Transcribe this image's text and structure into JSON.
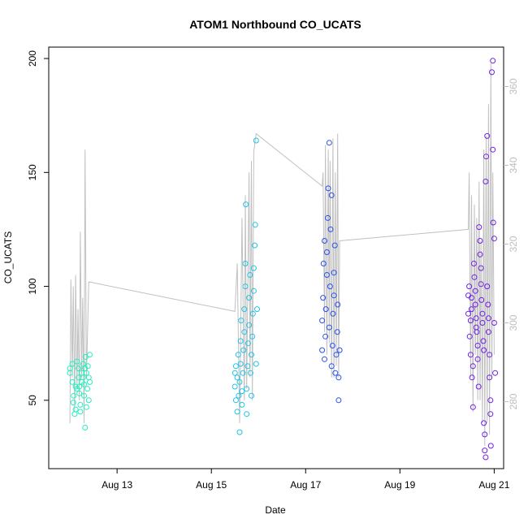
{
  "chart_data": {
    "type": "scatter",
    "title": "ATOM1 Northbound CO_UCATS",
    "xlabel": "Date",
    "ylabel": "CO_UCATS",
    "x_ticks": [
      "Aug 13",
      "Aug 15",
      "Aug 17",
      "Aug 19",
      "Aug 21"
    ],
    "x_tick_values": [
      13,
      15,
      17,
      19,
      21
    ],
    "xlim": [
      11.55,
      21.2
    ],
    "y_ticks": [
      50,
      100,
      150,
      200
    ],
    "ylim": [
      20,
      205
    ],
    "y2_ticks": [
      280,
      300,
      320,
      340,
      360
    ],
    "y2lim": [
      263,
      370
    ],
    "grid": false,
    "legend": "none",
    "line_color": "#c0c0c0",
    "series": [
      {
        "color": "#22f0c0",
        "points": [
          [
            12.0,
            64
          ],
          [
            12.0,
            62
          ],
          [
            12.05,
            66
          ],
          [
            12.05,
            58
          ],
          [
            12.07,
            49
          ],
          [
            12.08,
            52
          ],
          [
            12.1,
            44
          ],
          [
            12.12,
            46
          ],
          [
            12.12,
            56
          ],
          [
            12.15,
            55
          ],
          [
            12.15,
            67
          ],
          [
            12.18,
            60
          ],
          [
            12.18,
            64
          ],
          [
            12.2,
            56
          ],
          [
            12.2,
            53
          ],
          [
            12.22,
            48
          ],
          [
            12.22,
            45
          ],
          [
            12.25,
            58
          ],
          [
            12.25,
            62
          ],
          [
            12.28,
            66
          ],
          [
            12.28,
            60
          ],
          [
            12.3,
            52
          ],
          [
            12.3,
            57
          ],
          [
            12.32,
            38
          ],
          [
            12.32,
            64
          ],
          [
            12.33,
            69
          ],
          [
            12.35,
            62
          ],
          [
            12.35,
            47
          ],
          [
            12.37,
            55
          ],
          [
            12.38,
            65
          ],
          [
            12.4,
            60
          ],
          [
            12.4,
            50
          ],
          [
            12.42,
            58
          ],
          [
            12.42,
            70
          ]
        ]
      },
      {
        "color": "#20c4e8",
        "points": [
          [
            15.5,
            56
          ],
          [
            15.5,
            62
          ],
          [
            15.52,
            65
          ],
          [
            15.52,
            50
          ],
          [
            15.55,
            45
          ],
          [
            15.55,
            60
          ],
          [
            15.57,
            70
          ],
          [
            15.58,
            52
          ],
          [
            15.6,
            36
          ],
          [
            15.6,
            58
          ],
          [
            15.62,
            66
          ],
          [
            15.62,
            76
          ],
          [
            15.63,
            85
          ],
          [
            15.65,
            48
          ],
          [
            15.65,
            54
          ],
          [
            15.67,
            62
          ],
          [
            15.68,
            72
          ],
          [
            15.7,
            80
          ],
          [
            15.7,
            90
          ],
          [
            15.72,
            100
          ],
          [
            15.72,
            110
          ],
          [
            15.73,
            136
          ],
          [
            15.75,
            44
          ],
          [
            15.75,
            55
          ],
          [
            15.77,
            65
          ],
          [
            15.78,
            75
          ],
          [
            15.8,
            83
          ],
          [
            15.8,
            95
          ],
          [
            15.82,
            105
          ],
          [
            15.83,
            62
          ],
          [
            15.85,
            52
          ],
          [
            15.85,
            70
          ],
          [
            15.87,
            78
          ],
          [
            15.88,
            88
          ],
          [
            15.9,
            98
          ],
          [
            15.9,
            108
          ],
          [
            15.92,
            118
          ],
          [
            15.93,
            127
          ],
          [
            15.95,
            164
          ],
          [
            15.95,
            66
          ],
          [
            15.97,
            90
          ]
        ]
      },
      {
        "color": "#2850f0",
        "points": [
          [
            17.35,
            72
          ],
          [
            17.35,
            85
          ],
          [
            17.37,
            95
          ],
          [
            17.38,
            110
          ],
          [
            17.4,
            120
          ],
          [
            17.4,
            68
          ],
          [
            17.42,
            78
          ],
          [
            17.43,
            90
          ],
          [
            17.45,
            105
          ],
          [
            17.45,
            115
          ],
          [
            17.47,
            130
          ],
          [
            17.48,
            143
          ],
          [
            17.5,
            163
          ],
          [
            17.5,
            82
          ],
          [
            17.52,
            100
          ],
          [
            17.53,
            125
          ],
          [
            17.55,
            140
          ],
          [
            17.55,
            65
          ],
          [
            17.57,
            74
          ],
          [
            17.58,
            88
          ],
          [
            17.6,
            96
          ],
          [
            17.6,
            106
          ],
          [
            17.62,
            118
          ],
          [
            17.63,
            62
          ],
          [
            17.65,
            70
          ],
          [
            17.67,
            80
          ],
          [
            17.68,
            92
          ],
          [
            17.7,
            50
          ],
          [
            17.7,
            60
          ],
          [
            17.72,
            72
          ]
        ]
      },
      {
        "color": "#7020e8",
        "points": [
          [
            20.45,
            88
          ],
          [
            20.45,
            96
          ],
          [
            20.47,
            100
          ],
          [
            20.48,
            78
          ],
          [
            20.5,
            70
          ],
          [
            20.5,
            85
          ],
          [
            20.52,
            90
          ],
          [
            20.52,
            95
          ],
          [
            20.53,
            60
          ],
          [
            20.55,
            65
          ],
          [
            20.55,
            47
          ],
          [
            20.57,
            110
          ],
          [
            20.58,
            104
          ],
          [
            20.6,
            98
          ],
          [
            20.6,
            92
          ],
          [
            20.62,
            86
          ],
          [
            20.62,
            82
          ],
          [
            20.63,
            80
          ],
          [
            20.65,
            74
          ],
          [
            20.65,
            68
          ],
          [
            20.67,
            56
          ],
          [
            20.68,
            126
          ],
          [
            20.7,
            120
          ],
          [
            20.7,
            114
          ],
          [
            20.72,
            108
          ],
          [
            20.72,
            101
          ],
          [
            20.73,
            94
          ],
          [
            20.75,
            88
          ],
          [
            20.75,
            84
          ],
          [
            20.77,
            76
          ],
          [
            20.78,
            72
          ],
          [
            20.78,
            40
          ],
          [
            20.8,
            35
          ],
          [
            20.8,
            28
          ],
          [
            20.82,
            25
          ],
          [
            20.82,
            146
          ],
          [
            20.83,
            157
          ],
          [
            20.85,
            166
          ],
          [
            20.85,
            100
          ],
          [
            20.87,
            92
          ],
          [
            20.88,
            86
          ],
          [
            20.88,
            80
          ],
          [
            20.9,
            70
          ],
          [
            20.9,
            60
          ],
          [
            20.92,
            50
          ],
          [
            20.92,
            44
          ],
          [
            20.93,
            30
          ],
          [
            20.95,
            194
          ],
          [
            20.97,
            199
          ],
          [
            20.97,
            160
          ],
          [
            20.98,
            128
          ],
          [
            21.0,
            121
          ],
          [
            21.0,
            84
          ],
          [
            21.02,
            62
          ]
        ]
      }
    ],
    "line_path": [
      [
        12.0,
        40
      ],
      [
        12.02,
        103
      ],
      [
        12.05,
        60
      ],
      [
        12.07,
        100
      ],
      [
        12.1,
        45
      ],
      [
        12.12,
        105
      ],
      [
        12.15,
        55
      ],
      [
        12.17,
        90
      ],
      [
        12.2,
        50
      ],
      [
        12.22,
        124
      ],
      [
        12.25,
        60
      ],
      [
        12.27,
        95
      ],
      [
        12.3,
        40
      ],
      [
        12.32,
        160
      ],
      [
        12.35,
        60
      ],
      [
        12.4,
        102
      ],
      [
        15.5,
        89
      ],
      [
        15.55,
        110
      ],
      [
        15.6,
        40
      ],
      [
        15.65,
        130
      ],
      [
        15.7,
        50
      ],
      [
        15.72,
        140
      ],
      [
        15.75,
        55
      ],
      [
        15.8,
        150
      ],
      [
        15.82,
        60
      ],
      [
        15.85,
        155
      ],
      [
        15.87,
        50
      ],
      [
        15.9,
        159
      ],
      [
        15.95,
        167
      ],
      [
        17.35,
        144
      ],
      [
        17.37,
        150
      ],
      [
        17.4,
        80
      ],
      [
        17.42,
        162
      ],
      [
        17.45,
        70
      ],
      [
        17.48,
        160
      ],
      [
        17.5,
        75
      ],
      [
        17.52,
        155
      ],
      [
        17.55,
        60
      ],
      [
        17.58,
        165
      ],
      [
        17.6,
        60
      ],
      [
        17.63,
        150
      ],
      [
        17.65,
        65
      ],
      [
        17.68,
        167
      ],
      [
        17.7,
        60
      ],
      [
        17.72,
        120
      ],
      [
        20.45,
        125
      ],
      [
        20.47,
        150
      ],
      [
        20.5,
        60
      ],
      [
        20.52,
        140
      ],
      [
        20.55,
        45
      ],
      [
        20.58,
        136
      ],
      [
        20.6,
        70
      ],
      [
        20.63,
        130
      ],
      [
        20.65,
        50
      ],
      [
        20.68,
        146
      ],
      [
        20.7,
        50
      ],
      [
        20.72,
        120
      ],
      [
        20.75,
        40
      ],
      [
        20.78,
        160
      ],
      [
        20.8,
        30
      ],
      [
        20.83,
        166
      ],
      [
        20.85,
        40
      ],
      [
        20.88,
        180
      ],
      [
        20.9,
        35
      ],
      [
        20.93,
        198
      ],
      [
        20.95,
        60
      ],
      [
        20.97,
        150
      ],
      [
        21.0,
        70
      ]
    ]
  }
}
